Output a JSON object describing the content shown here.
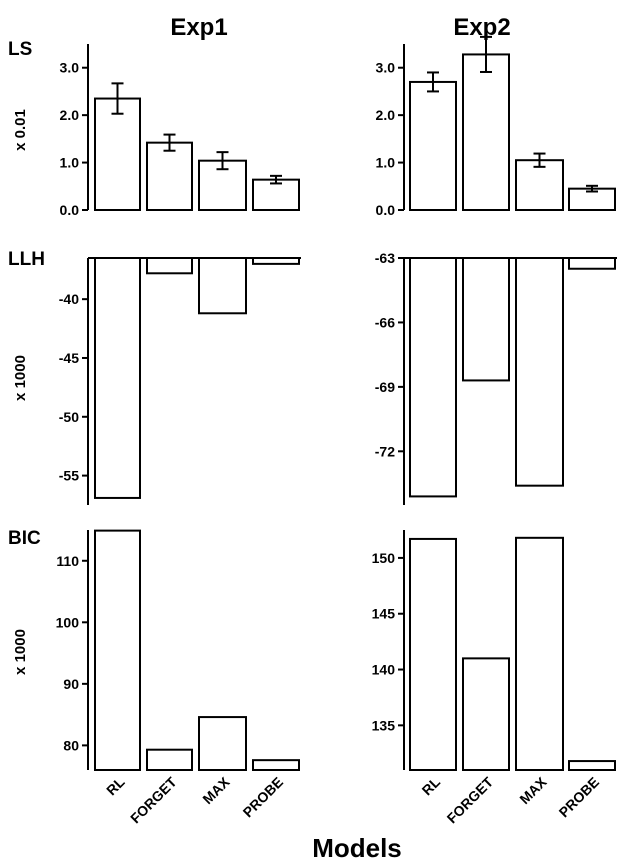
{
  "columns": [
    "Exp1",
    "Exp2"
  ],
  "x_title": "Models",
  "categories": [
    "RL",
    "FORGET",
    "MAX",
    "PROBE"
  ],
  "chart_data": [
    {
      "type": "bar",
      "row": "LS",
      "column": "Exp1",
      "ylabel": "x 0.01",
      "ylim": [
        0,
        3.5
      ],
      "yticks": [
        "0.0",
        "1.0",
        "2.0",
        "3.0"
      ],
      "tick_values": [
        0,
        1,
        2,
        3
      ],
      "values": [
        2.35,
        1.42,
        1.04,
        0.64
      ],
      "errors": [
        0.32,
        0.17,
        0.18,
        0.08
      ]
    },
    {
      "type": "bar",
      "row": "LS",
      "column": "Exp2",
      "ylabel": "",
      "ylim": [
        0,
        3.5
      ],
      "yticks": [
        "0.0",
        "1.0",
        "2.0",
        "3.0"
      ],
      "tick_values": [
        0,
        1,
        2,
        3
      ],
      "values": [
        2.7,
        3.28,
        1.05,
        0.45
      ],
      "errors": [
        0.2,
        0.37,
        0.14,
        0.06
      ]
    },
    {
      "type": "bar",
      "row": "LLH",
      "column": "Exp1",
      "ylabel": "x 1000",
      "ylim": [
        -57.5,
        -36.5
      ],
      "yticks": [
        "-40",
        "-45",
        "-50",
        "-55"
      ],
      "tick_values": [
        -40,
        -45,
        -50,
        -55
      ],
      "values": [
        -56.9,
        -37.8,
        -41.2,
        -37.0
      ]
    },
    {
      "type": "bar",
      "row": "LLH",
      "column": "Exp2",
      "ylabel": "",
      "ylim": [
        -74.5,
        -63
      ],
      "yticks": [
        "-63",
        "-66",
        "-69",
        "-72"
      ],
      "tick_values": [
        -63,
        -66,
        -69,
        -72
      ],
      "values": [
        -74.1,
        -68.7,
        -73.6,
        -63.5
      ]
    },
    {
      "type": "bar",
      "row": "BIC",
      "column": "Exp1",
      "ylabel": "x 1000",
      "ylim": [
        76,
        115
      ],
      "yticks": [
        "110",
        "100",
        "90",
        "80"
      ],
      "tick_values": [
        110,
        100,
        90,
        80
      ],
      "values": [
        114.9,
        79.3,
        84.6,
        77.6
      ]
    },
    {
      "type": "bar",
      "row": "BIC",
      "column": "Exp2",
      "ylabel": "",
      "ylim": [
        131,
        152.5
      ],
      "yticks": [
        "150",
        "145",
        "140",
        "135"
      ],
      "tick_values": [
        150,
        145,
        140,
        135
      ],
      "values": [
        151.7,
        141.0,
        151.8,
        131.8
      ]
    }
  ]
}
